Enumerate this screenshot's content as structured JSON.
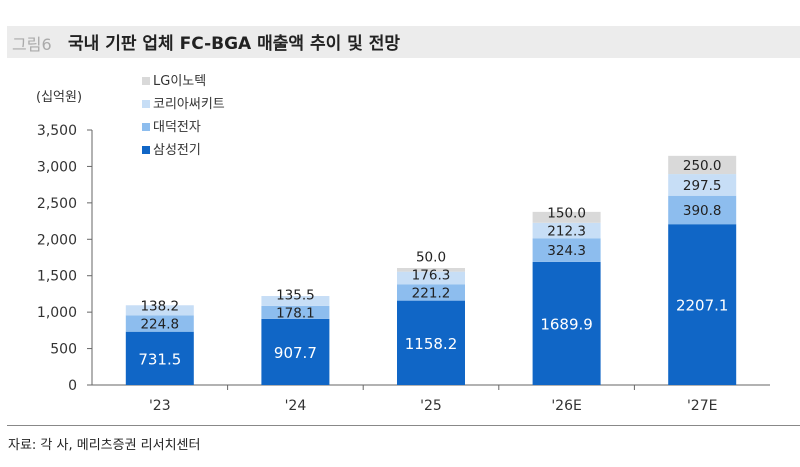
{
  "header": {
    "figure_label": "그림6",
    "title": "국내 기판 업체 FC-BGA 매출액 추이 및 전망"
  },
  "footer": {
    "source": "자료: 각 사, 메리츠증권 리서치센터"
  },
  "chart_data": {
    "type": "bar",
    "stacked": true,
    "unit_label": "(십억원)",
    "categories": [
      "'23",
      "'24",
      "'25",
      "'26E",
      "'27E"
    ],
    "ylim": [
      0,
      3500
    ],
    "yticks": [
      0,
      500,
      1000,
      1500,
      2000,
      2500,
      3000,
      3500
    ],
    "ytick_labels": [
      "0",
      "500",
      "1,000",
      "1,500",
      "2,000",
      "2,500",
      "3,000",
      "3,500"
    ],
    "grid": false,
    "legend_placement": "top-left",
    "series": [
      {
        "name": "삼성전기",
        "color": "#1066c6",
        "values": [
          731.5,
          907.7,
          1158.2,
          1689.9,
          2207.1
        ],
        "labels": [
          "731.5",
          "907.7",
          "1158.2",
          "1689.9",
          "2207.1"
        ]
      },
      {
        "name": "대덕전자",
        "color": "#8dbdee",
        "values": [
          224.8,
          178.1,
          221.2,
          324.3,
          390.8
        ],
        "labels": [
          "224.8",
          "178.1",
          "221.2",
          "324.3",
          "390.8"
        ]
      },
      {
        "name": "코리아써키트",
        "color": "#c7def6",
        "values": [
          138.2,
          135.5,
          176.3,
          212.3,
          297.5
        ],
        "labels": [
          "138.2",
          "135.5",
          "176.3",
          "212.3",
          "297.5"
        ]
      },
      {
        "name": "LG이노텍",
        "color": "#d9d9d9",
        "values": [
          0,
          0,
          50.0,
          150.0,
          250.0
        ],
        "labels": [
          "",
          "",
          "50.0",
          "150.0",
          "250.0"
        ]
      }
    ]
  }
}
